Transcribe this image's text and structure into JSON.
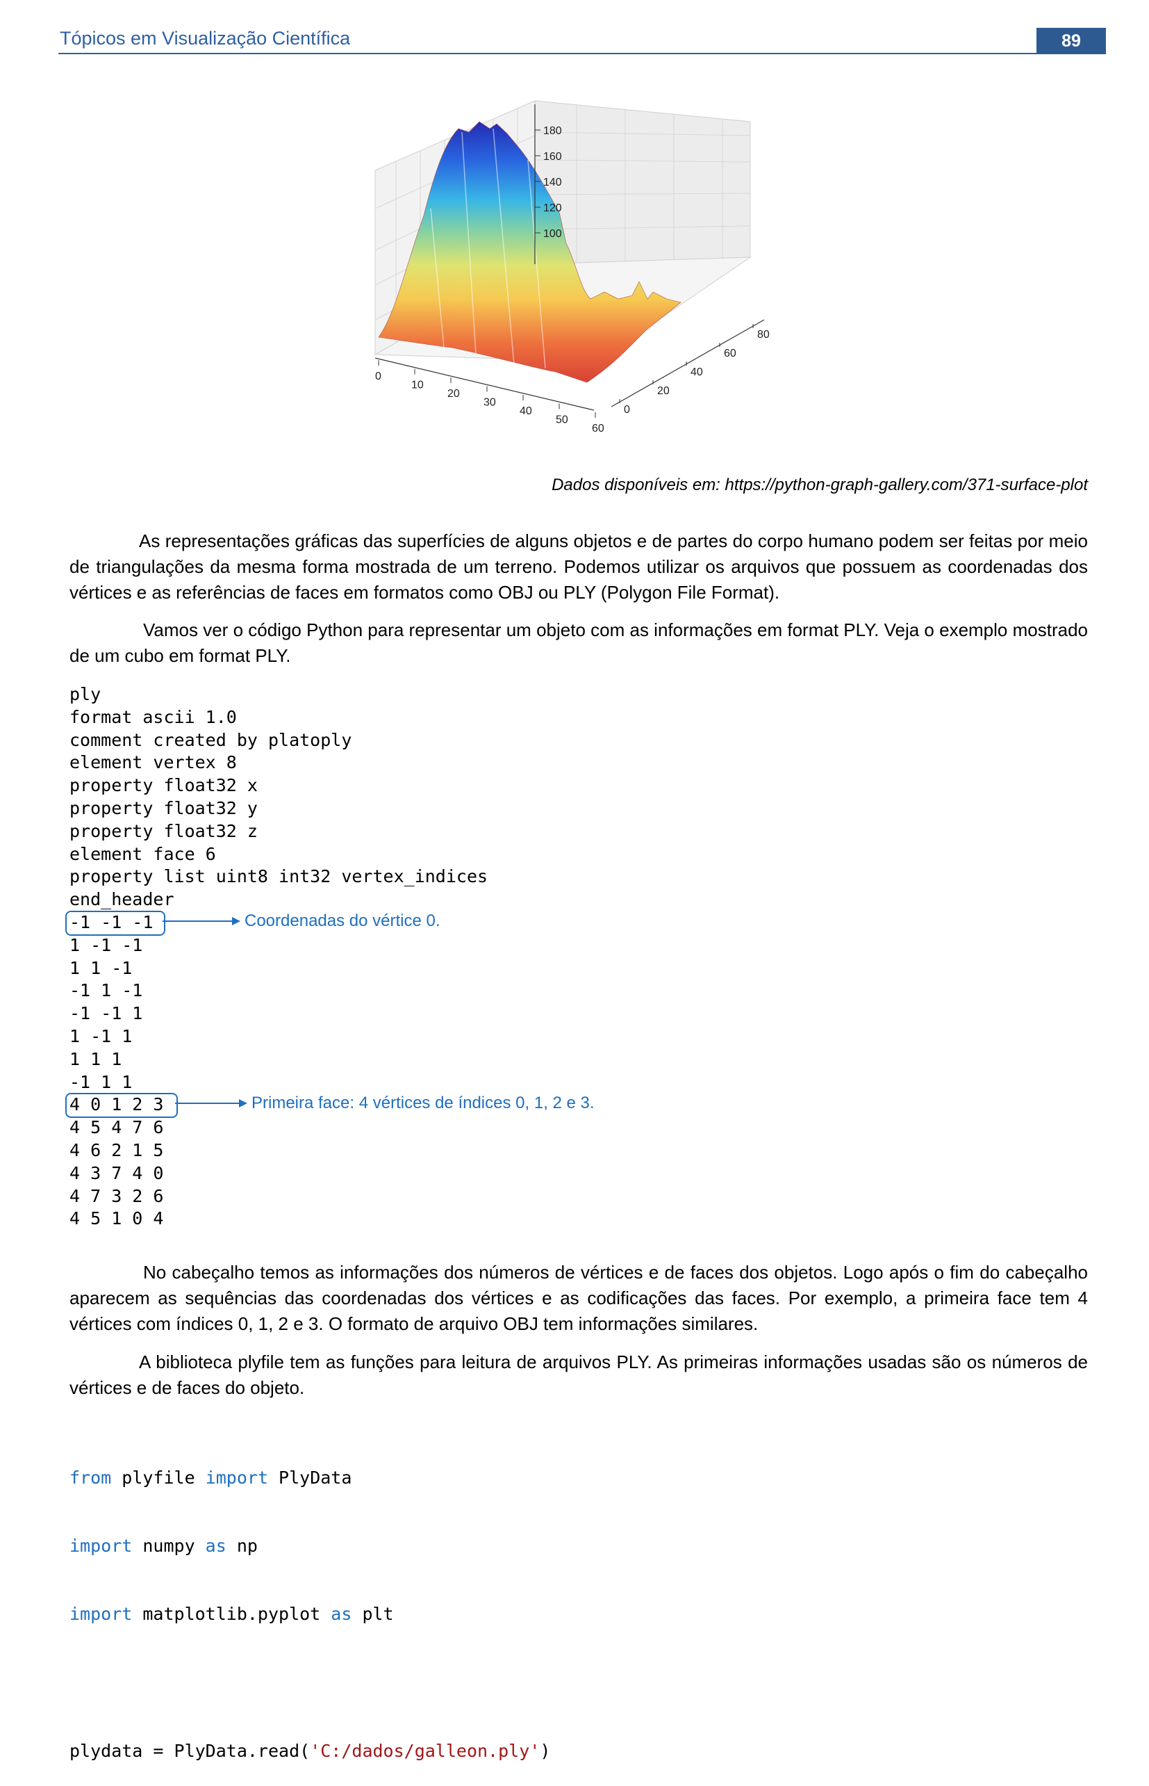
{
  "header": {
    "title": "Tópicos em Visualização Científica",
    "page_number": "89"
  },
  "figure": {
    "caption": "Dados disponíveis em: https://python-graph-gallery.com/371-surface-plot",
    "x_ticks": [
      "0",
      "10",
      "20",
      "30",
      "40",
      "50",
      "60"
    ],
    "y_ticks": [
      "0",
      "20",
      "40",
      "60",
      "80"
    ],
    "z_ticks": [
      "100",
      "120",
      "140",
      "160",
      "180"
    ],
    "colormap": "jet"
  },
  "paragraphs": {
    "p1": "As representações gráficas das superfícies de alguns objetos e de partes do corpo humano podem ser feitas por meio de triangulações da mesma forma mostrada de um terreno. Podemos utilizar os arquivos que possuem as coordenadas dos vértices e as referências de faces em formatos como OBJ ou PLY (Polygon File Format).",
    "p2": "Vamos ver o código Python para representar um objeto com as informações em format PLY. Veja o exemplo mostrado de um cubo em format PLY.",
    "p3": "No cabeçalho temos as informações dos números de vértices e de faces dos objetos. Logo após o fim do cabeçalho aparecem as sequências das coordenadas dos vértices e as codificações das faces. Por exemplo, a primeira face tem 4 vértices com índices 0, 1, 2 e 3. O formato de arquivo OBJ tem informações similares.",
    "p4": "A biblioteca plyfile tem as funções para leitura de arquivos PLY. As primeiras informações usadas são os números de vértices e de faces do objeto."
  },
  "ply_code": [
    "ply",
    "format ascii 1.0",
    "comment created by platoply",
    "element vertex 8",
    "property float32 x",
    "property float32 y",
    "property float32 z",
    "element face 6",
    "property list uint8 int32 vertex_indices",
    "end_header",
    "-1 -1 -1",
    "1 -1 -1",
    "1 1 -1",
    "-1 1 -1",
    "-1 -1 1",
    "1 -1 1",
    "1 1 1",
    "-1 1 1",
    "4 0 1 2 3",
    "4 5 4 7 6",
    "4 6 2 1 5",
    "4 3 7 4 0",
    "4 7 3 2 6",
    "4 5 1 0 4"
  ],
  "annotations": {
    "vertex_note": "Coordenadas do vértice 0.",
    "face_note": "Primeira face: 4 vértices de índices 0, 1, 2 e 3."
  },
  "python_code": {
    "l1_kw1": "from",
    "l1_a": " plyfile ",
    "l1_kw2": "import",
    "l1_b": " PlyData",
    "l2_kw1": "import",
    "l2_a": " numpy ",
    "l2_kw2": "as",
    "l2_b": " np",
    "l3_kw1": "import",
    "l3_a": " matplotlib.pyplot ",
    "l3_kw2": "as",
    "l3_b": " plt",
    "l5_a": "plydata = PlyData.read(",
    "l5_str": "'C:/dados/galleon.ply'",
    "l5_b": ")"
  },
  "colors": {
    "accent": "#2e5fa3",
    "annotation": "#1f6fbf",
    "keyword": "#1f6fbf",
    "string": "#a31515"
  }
}
